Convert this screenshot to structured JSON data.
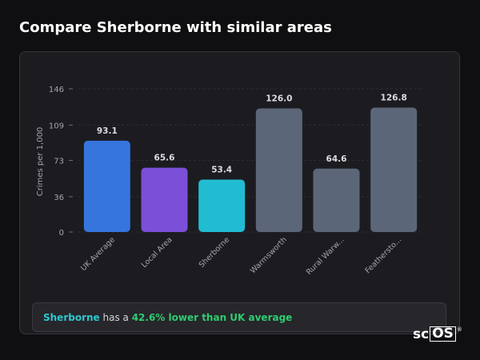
{
  "title": "Compare Sherborne with similar areas",
  "chart_data": {
    "type": "bar",
    "ylabel": "Crimes per 1,000",
    "xlabel": "",
    "ylim": [
      0,
      146
    ],
    "yticks": [
      0,
      36,
      73,
      109,
      146
    ],
    "grid": true,
    "categories": [
      "UK Average",
      "Local Area",
      "Sherborne",
      "Warmsworth",
      "Rural Warw...",
      "Feathersto..."
    ],
    "values": [
      93.1,
      65.6,
      53.4,
      126.0,
      64.6,
      126.8
    ],
    "value_labels": [
      "93.1",
      "65.6",
      "53.4",
      "126.0",
      "64.6",
      "126.8"
    ],
    "colors": [
      "#3575dc",
      "#7c4fd8",
      "#22bcd2",
      "#5b6779",
      "#5b6779",
      "#5b6779"
    ]
  },
  "summary": {
    "area": "Sherborne",
    "text_middle": " has a ",
    "difference": "42.6% lower than UK average"
  },
  "logo": {
    "prefix": "sc",
    "boxed": "OS",
    "mark": "®"
  }
}
